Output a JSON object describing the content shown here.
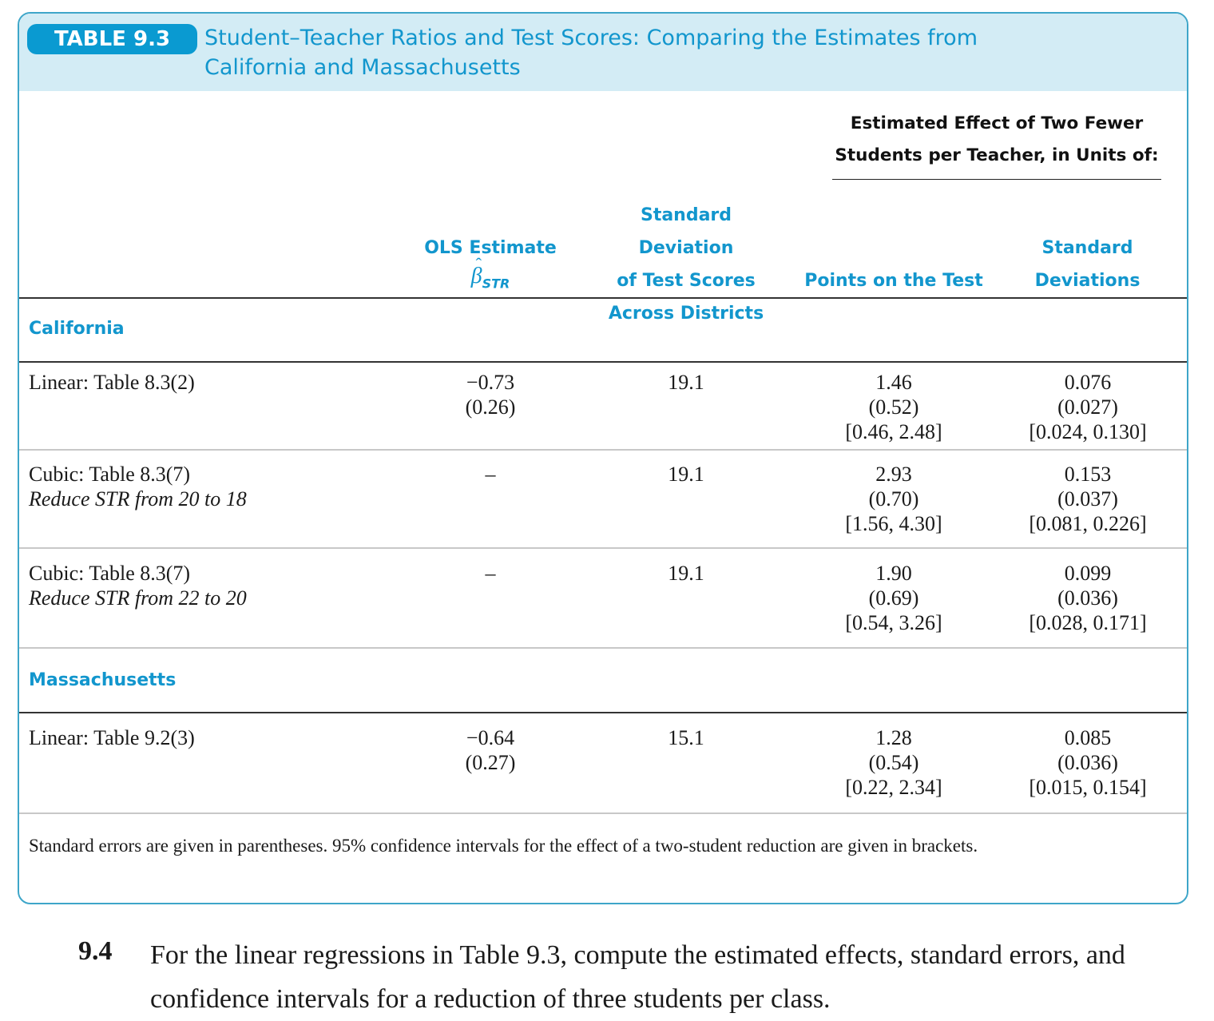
{
  "table": {
    "badge": "TABLE 9.3",
    "title_line1": "Student–Teacher Ratios and Test Scores: Comparing the Estimates from",
    "title_line2": "California and Massachusetts",
    "group_header_line1": "Estimated Effect of Two Fewer",
    "group_header_line2": "Students per Teacher, in Units of:",
    "columns": {
      "ols_line1": "OLS Estimate",
      "ols_beta": "β",
      "ols_sub": "STR",
      "sd_line1": "Standard Deviation",
      "sd_line2": "of Test Scores",
      "sd_line3": "Across Districts",
      "points": "Points on the Test",
      "stdev_line1": "Standard",
      "stdev_line2": "Deviations"
    },
    "sections": {
      "california": "California",
      "massachusetts": "Massachusetts"
    },
    "rows": [
      {
        "label": "Linear: Table 8.3(2)",
        "sublabel": "",
        "ols": "−0.73",
        "ols_se": "(0.26)",
        "sd": "19.1",
        "points": "1.46",
        "points_se": "(0.52)",
        "points_ci": "[0.46, 2.48]",
        "stdev": "0.076",
        "stdev_se": "(0.027)",
        "stdev_ci": "[0.024, 0.130]"
      },
      {
        "label": "Cubic: Table 8.3(7)",
        "sublabel": "Reduce STR from 20 to 18",
        "ols": "–",
        "ols_se": "",
        "sd": "19.1",
        "points": "2.93",
        "points_se": "(0.70)",
        "points_ci": "[1.56, 4.30]",
        "stdev": "0.153",
        "stdev_se": "(0.037)",
        "stdev_ci": "[0.081, 0.226]"
      },
      {
        "label": "Cubic: Table 8.3(7)",
        "sublabel": "Reduce STR from 22 to 20",
        "ols": "–",
        "ols_se": "",
        "sd": "19.1",
        "points": "1.90",
        "points_se": "(0.69)",
        "points_ci": "[0.54, 3.26]",
        "stdev": "0.099",
        "stdev_se": "(0.036)",
        "stdev_ci": "[0.028, 0.171]"
      },
      {
        "label": "Linear: Table 9.2(3)",
        "sublabel": "",
        "ols": "−0.64",
        "ols_se": "(0.27)",
        "sd": "15.1",
        "points": "1.28",
        "points_se": "(0.54)",
        "points_ci": "[0.22, 2.34]",
        "stdev": "0.085",
        "stdev_se": "(0.036)",
        "stdev_ci": "[0.015, 0.154]"
      }
    ],
    "note": "Standard errors are given in parentheses. 95% confidence intervals for the effect of a two-student reduction are given in brackets."
  },
  "exercise": {
    "number": "9.4",
    "text": "For the linear regressions in Table 9.3, compute the estimated effects, standard errors, and confidence intervals for a reduction of three students per class."
  }
}
